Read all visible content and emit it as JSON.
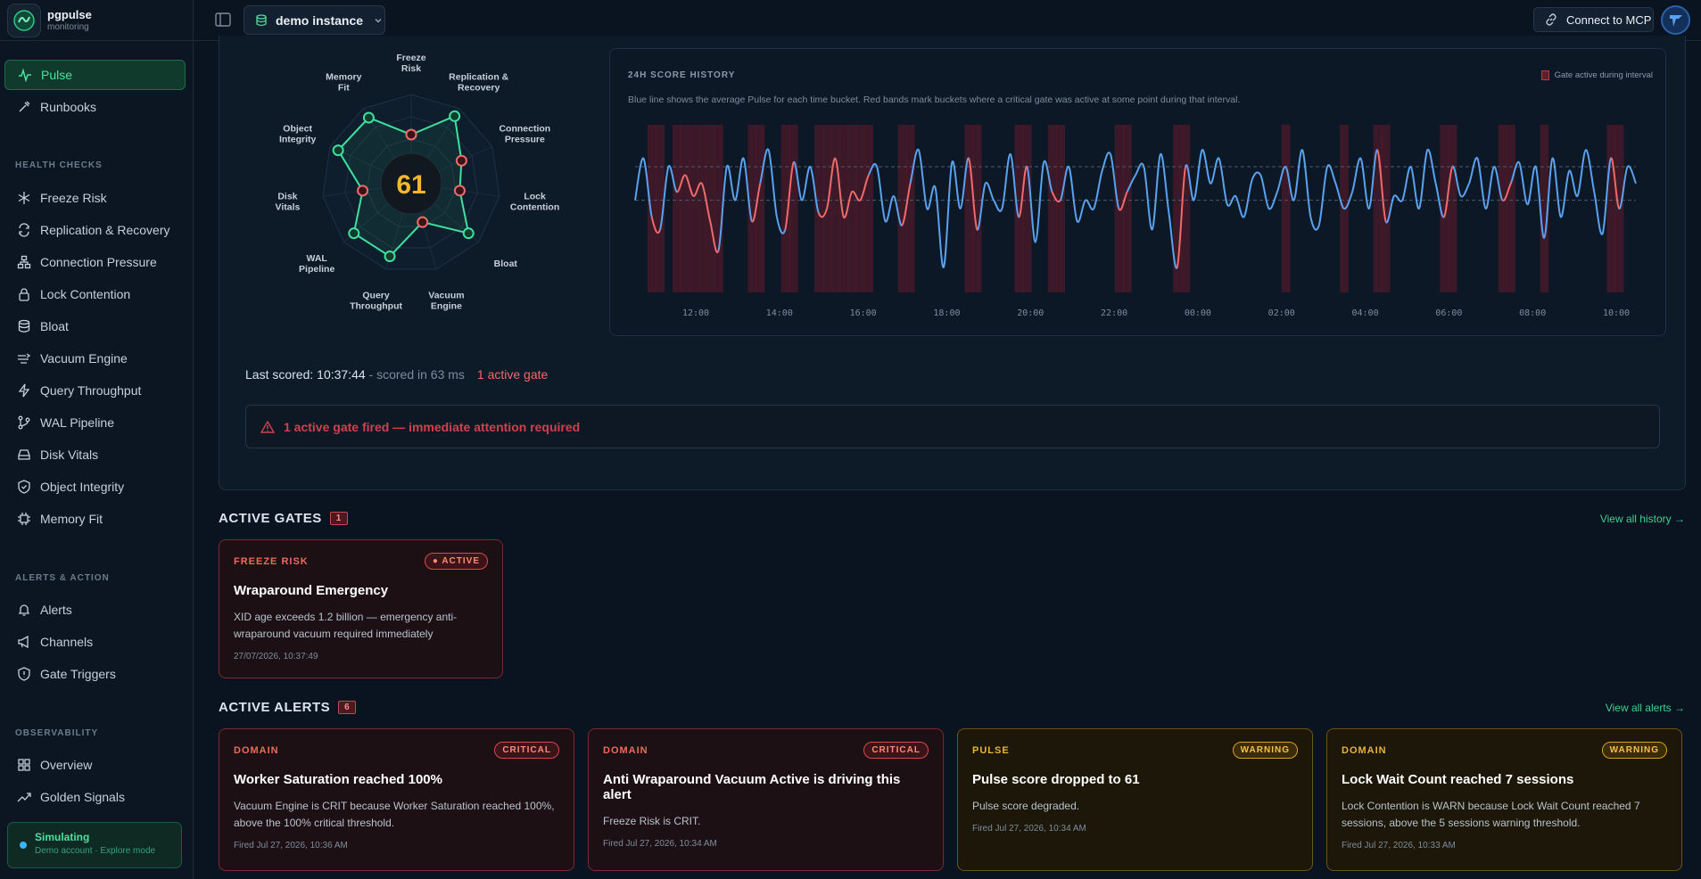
{
  "app": {
    "name": "pgpulse",
    "subtitle": "monitoring"
  },
  "topbar": {
    "instance": "demo instance",
    "mcp_button": "Connect to MCP"
  },
  "sidebar": {
    "main": [
      {
        "label": "Pulse",
        "icon": "pulse-icon",
        "active": true
      },
      {
        "label": "Runbooks",
        "icon": "runbook-icon"
      }
    ],
    "health_checks_heading": "HEALTH CHECKS",
    "health_checks": [
      {
        "label": "Freeze Risk",
        "icon": "snowflake-icon"
      },
      {
        "label": "Replication & Recovery",
        "icon": "replication-icon"
      },
      {
        "label": "Connection Pressure",
        "icon": "network-icon"
      },
      {
        "label": "Lock Contention",
        "icon": "lock-icon"
      },
      {
        "label": "Bloat",
        "icon": "database-icon"
      },
      {
        "label": "Vacuum Engine",
        "icon": "vacuum-icon"
      },
      {
        "label": "Query Throughput",
        "icon": "bolt-icon"
      },
      {
        "label": "WAL Pipeline",
        "icon": "git-branch-icon"
      },
      {
        "label": "Disk Vitals",
        "icon": "disk-icon"
      },
      {
        "label": "Object Integrity",
        "icon": "shield-icon"
      },
      {
        "label": "Memory Fit",
        "icon": "chip-icon"
      }
    ],
    "alerts_heading": "ALERTS & ACTION",
    "alerts": [
      {
        "label": "Alerts",
        "icon": "bell-icon"
      },
      {
        "label": "Channels",
        "icon": "megaphone-icon"
      },
      {
        "label": "Gate Triggers",
        "icon": "shield-alert-icon"
      }
    ],
    "observability_heading": "OBSERVABILITY",
    "observability": [
      {
        "label": "Overview",
        "icon": "grid-icon"
      },
      {
        "label": "Golden Signals",
        "icon": "trend-icon"
      }
    ],
    "simulating": {
      "title": "Simulating",
      "subtitle": "Demo account · Explore mode"
    }
  },
  "pulse": {
    "score": "61",
    "radar_labels": [
      "Freeze Risk",
      "Replication & Recovery",
      "Connection Pressure",
      "Lock Contention",
      "Bloat",
      "Vacuum Engine",
      "Query Throughput",
      "WAL Pipeline",
      "Disk Vitals",
      "Object Integrity",
      "Memory Fit"
    ],
    "radar_values": [
      0.55,
      0.9,
      0.62,
      0.55,
      0.85,
      0.45,
      0.85,
      0.85,
      0.55,
      0.9,
      0.88
    ],
    "radar_status": [
      "crit",
      "ok",
      "crit",
      "crit",
      "ok",
      "crit",
      "ok",
      "ok",
      "crit",
      "ok",
      "ok"
    ],
    "last_scored_label": "Last scored: 10:37:44",
    "scored_in": " - scored in 63 ms",
    "active_gate": "1 active gate",
    "banner": "1 active gate fired — immediate attention required"
  },
  "chart_data": {
    "type": "line",
    "title": "24H SCORE HISTORY",
    "description": "Blue line shows the average Pulse for each time bucket. Red bands mark buckets where a critical gate was active at some point during that interval.",
    "legend": "Gate active during interval",
    "x_ticks": [
      "12:00",
      "14:00",
      "16:00",
      "18:00",
      "20:00",
      "22:00",
      "00:00",
      "02:00",
      "04:00",
      "06:00",
      "08:00",
      "10:00"
    ],
    "series_color": "#5aa2f0",
    "gate_color": "#ef6a6a",
    "values": [
      62,
      72,
      58,
      55,
      70,
      64,
      68,
      63,
      66,
      57,
      50,
      70,
      62,
      72,
      57,
      66,
      74,
      58,
      55,
      71,
      62,
      70,
      59,
      60,
      72,
      58,
      64,
      62,
      68,
      70,
      57,
      63,
      56,
      66,
      74,
      60,
      65,
      46,
      71,
      60,
      72,
      55,
      66,
      62,
      60,
      73,
      58,
      70,
      52,
      71,
      64,
      62,
      70,
      57,
      62,
      60,
      69,
      73,
      60,
      64,
      68,
      70,
      55,
      73,
      59,
      46,
      70,
      62,
      74,
      66,
      72,
      61,
      63,
      58,
      67,
      68,
      60,
      64,
      70,
      62,
      74,
      58,
      56,
      70,
      66,
      60,
      64,
      72,
      60,
      74,
      57,
      63,
      62,
      70,
      60,
      74,
      66,
      58,
      70,
      63,
      66,
      72,
      60,
      70,
      62,
      66,
      71,
      61,
      70,
      53,
      72,
      58,
      69,
      63,
      74,
      64,
      54,
      72,
      60,
      70,
      66
    ],
    "gate_mask": [
      0,
      0,
      1,
      1,
      0,
      1,
      1,
      1,
      1,
      1,
      1,
      0,
      0,
      0,
      1,
      1,
      0,
      0,
      1,
      1,
      0,
      0,
      1,
      1,
      1,
      1,
      1,
      1,
      1,
      0,
      0,
      0,
      1,
      1,
      0,
      0,
      0,
      0,
      0,
      0,
      1,
      1,
      0,
      0,
      0,
      0,
      1,
      1,
      0,
      0,
      1,
      1,
      0,
      0,
      0,
      0,
      0,
      0,
      1,
      1,
      0,
      0,
      0,
      0,
      0,
      1,
      1,
      0,
      0,
      0,
      0,
      0,
      0,
      0,
      0,
      0,
      0,
      0,
      1,
      0,
      0,
      0,
      0,
      0,
      0,
      1,
      0,
      0,
      0,
      1,
      1,
      0,
      0,
      0,
      0,
      0,
      0,
      1,
      1,
      0,
      0,
      0,
      0,
      0,
      1,
      1,
      0,
      0,
      0,
      1,
      0,
      0,
      0,
      0,
      0,
      0,
      0,
      1,
      1,
      0,
      0
    ],
    "ylim": [
      40,
      80
    ],
    "dashed_lines": [
      70,
      62
    ]
  },
  "active_gates": {
    "title": "ACTIVE GATES",
    "count": "1",
    "view_link": "View all history →",
    "items": [
      {
        "category": "FREEZE RISK",
        "status": "● ACTIVE",
        "title": "Wraparound Emergency",
        "description": "XID age exceeds 1.2 billion — emergency anti-wraparound vacuum required immediately",
        "time": "27/07/2026, 10:37:49"
      }
    ]
  },
  "active_alerts": {
    "title": "ACTIVE ALERTS",
    "count": "6",
    "view_link": "View all alerts →",
    "items": [
      {
        "category": "DOMAIN",
        "severity": "CRITICAL",
        "level": "crit",
        "title": "Worker Saturation reached 100%",
        "description": "Vacuum Engine is CRIT because Worker Saturation reached 100%, above the 100% critical threshold.",
        "time": "Fired Jul 27, 2026, 10:36 AM"
      },
      {
        "category": "DOMAIN",
        "severity": "CRITICAL",
        "level": "crit",
        "title": "Anti Wraparound Vacuum Active is driving this alert",
        "description": "Freeze Risk is CRIT.",
        "time": "Fired Jul 27, 2026, 10:34 AM"
      },
      {
        "category": "PULSE",
        "severity": "WARNING",
        "level": "warn",
        "title": "Pulse score dropped to 61",
        "description": "Pulse score degraded.",
        "time": "Fired Jul 27, 2026, 10:34 AM"
      },
      {
        "category": "DOMAIN",
        "severity": "WARNING",
        "level": "warn",
        "title": "Lock Wait Count reached 7 sessions",
        "description": "Lock Contention is WARN because Lock Wait Count reached 7 sessions, above the 5 sessions warning threshold.",
        "time": "Fired Jul 27, 2026, 10:33 AM"
      }
    ]
  }
}
